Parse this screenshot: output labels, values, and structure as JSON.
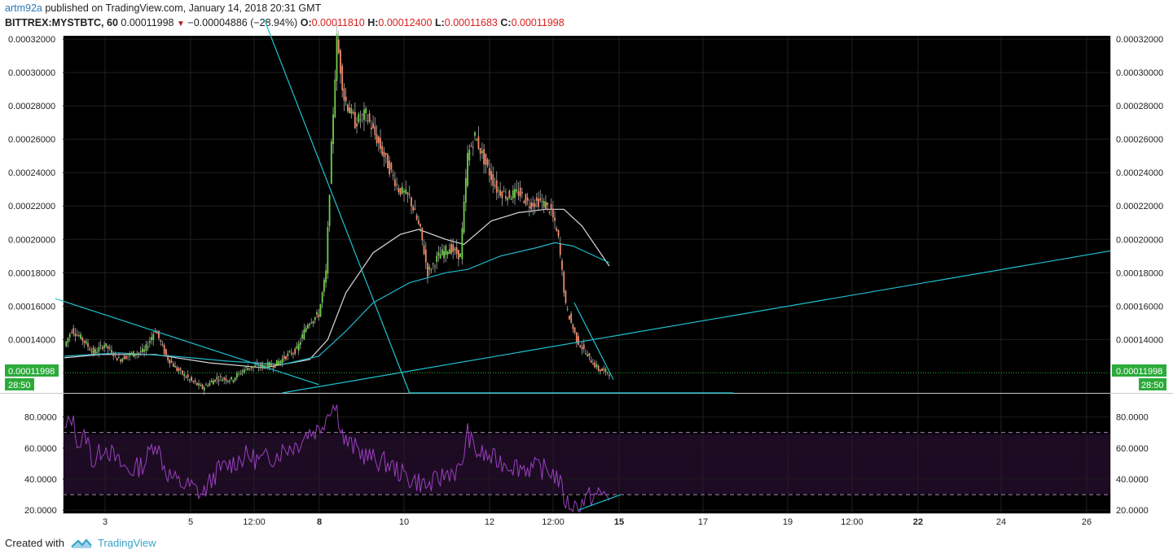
{
  "header": {
    "user": "artm92a",
    "published_text": " published on TradingView.com, January 14, 2018 20:31 GMT",
    "symbol": "BITTREX:MYSTBTC, 60",
    "last": "0.00011998",
    "change_arrow": "▼",
    "change": "−0.00004886 (−28.94%)",
    "o_label": "O:",
    "o_val": "0.00011810",
    "h_label": "H:",
    "h_val": "0.00012400",
    "l_label": "L:",
    "l_val": "0.00011683",
    "c_label": "C:",
    "c_val": "0.00011998"
  },
  "price_badge": {
    "price": "0.00011998",
    "timer": "28:50"
  },
  "footer": {
    "created_with": "Created with",
    "brand": "TradingView"
  },
  "colors": {
    "background": "#000000",
    "up": "#6fd04a",
    "down": "#f08a6a",
    "ma_fast": "#d9d9d9",
    "ma_slow": "#22b7c9",
    "trendline": "#1fc3d0",
    "rsi": "#9b3fbf",
    "rsi_band": "#1d0b24",
    "badge": "#2cab3a"
  },
  "chart_data": [
    {
      "type": "candlestick",
      "title": "BITTREX:MYSTBTC, 60",
      "y_ticks": [
        "0.00032000",
        "0.00030000",
        "0.00028000",
        "0.00026000",
        "0.00024000",
        "0.00022000",
        "0.00020000",
        "0.00018000",
        "0.00016000",
        "0.00014000"
      ],
      "ylim": [
        0.000108,
        0.000322
      ],
      "x_ticks": [
        "3",
        "5",
        "12:00",
        "8",
        "10",
        "12",
        "12:00",
        "15",
        "17",
        "19",
        "12:00",
        "22",
        "24",
        "26"
      ],
      "bold_x_ticks": [
        "8",
        "15",
        "22"
      ],
      "last_price": 0.00011998,
      "series": [
        {
          "name": "",
          "anchors": [
            [
              0,
              0.000136
            ],
            [
              4,
              0.000146
            ],
            [
              10,
              0.00014
            ],
            [
              16,
              0.000132
            ],
            [
              22,
              0.000137
            ],
            [
              30,
              0.000128
            ],
            [
              36,
              0.000131
            ],
            [
              44,
              0.000133
            ],
            [
              50,
              0.000146
            ],
            [
              56,
              0.00013
            ],
            [
              62,
              0.000122
            ],
            [
              70,
              0.000115
            ],
            [
              76,
              0.000111
            ],
            [
              84,
              0.000117
            ],
            [
              92,
              0.000116
            ],
            [
              100,
              0.000123
            ],
            [
              108,
              0.000124
            ],
            [
              116,
              0.000125
            ],
            [
              122,
              0.00013
            ],
            [
              128,
              0.000134
            ],
            [
              134,
              0.00015
            ],
            [
              140,
              0.000155
            ],
            [
              144,
              0.00018
            ],
            [
              147,
              0.000255
            ],
            [
              150,
              0.00032
            ],
            [
              154,
              0.000285
            ],
            [
              160,
              0.00027
            ],
            [
              166,
              0.000275
            ],
            [
              172,
              0.00026
            ],
            [
              178,
              0.000245
            ],
            [
              184,
              0.00023
            ],
            [
              190,
              0.000225
            ],
            [
              196,
              0.000205
            ],
            [
              200,
              0.00018
            ],
            [
              206,
              0.00019
            ],
            [
              212,
              0.000195
            ],
            [
              218,
              0.00019
            ],
            [
              222,
              0.00025
            ],
            [
              226,
              0.000262
            ],
            [
              232,
              0.000245
            ],
            [
              238,
              0.00023
            ],
            [
              244,
              0.000226
            ],
            [
              250,
              0.000228
            ],
            [
              256,
              0.000221
            ],
            [
              262,
              0.000223
            ],
            [
              268,
              0.000217
            ],
            [
              272,
              0.0002
            ],
            [
              276,
              0.00016
            ],
            [
              282,
              0.00014
            ],
            [
              288,
              0.00013
            ],
            [
              294,
              0.000122
            ],
            [
              300,
              0.00012
            ]
          ]
        }
      ],
      "moving_averages": [
        {
          "name": "",
          "color": "#d9d9d9",
          "values": [
            [
              0,
              0.000129
            ],
            [
              20,
              0.000131
            ],
            [
              50,
              0.000131
            ],
            [
              80,
              0.000126
            ],
            [
              110,
              0.000123
            ],
            [
              135,
              0.000128
            ],
            [
              145,
              0.00014
            ],
            [
              155,
              0.000168
            ],
            [
              170,
              0.000192
            ],
            [
              185,
              0.000203
            ],
            [
              195,
              0.000206
            ],
            [
              210,
              0.0002
            ],
            [
              220,
              0.000197
            ],
            [
              235,
              0.000211
            ],
            [
              250,
              0.000216
            ],
            [
              265,
              0.000218
            ],
            [
              275,
              0.000218
            ],
            [
              285,
              0.000208
            ],
            [
              300,
              0.000184
            ]
          ]
        },
        {
          "name": "",
          "color": "#22b7c9",
          "values": [
            [
              0,
              0.00013
            ],
            [
              30,
              0.000132
            ],
            [
              60,
              0.00013
            ],
            [
              90,
              0.000127
            ],
            [
              120,
              0.000125
            ],
            [
              140,
              0.00013
            ],
            [
              155,
              0.000145
            ],
            [
              170,
              0.000162
            ],
            [
              190,
              0.000174
            ],
            [
              210,
              0.00018
            ],
            [
              222,
              0.000182
            ],
            [
              240,
              0.00019
            ],
            [
              260,
              0.000195
            ],
            [
              270,
              0.000198
            ],
            [
              280,
              0.000196
            ],
            [
              300,
              0.000186
            ]
          ]
        }
      ],
      "trendlines": [
        {
          "from": [
            -5,
            0.0001645
          ],
          "to": [
            140,
            0.000113
          ]
        },
        {
          "from": [
            120,
            0.000108
          ],
          "to": [
            300,
            0.0001416
          ]
        },
        {
          "from": [
            110,
            0.000332
          ],
          "to": [
            190,
            0.000108
          ]
        }
      ]
    },
    {
      "type": "line",
      "title": "",
      "y_ticks": [
        "80.0000",
        "60.0000",
        "40.0000",
        "20.0000"
      ],
      "ylim": [
        18,
        95
      ],
      "levels": [
        70,
        30
      ],
      "series": [
        {
          "name": "",
          "anchors": [
            [
              0,
              70
            ],
            [
              4,
              80
            ],
            [
              8,
              62
            ],
            [
              12,
              68
            ],
            [
              16,
              50
            ],
            [
              22,
              62
            ],
            [
              30,
              50
            ],
            [
              36,
              45
            ],
            [
              44,
              50
            ],
            [
              50,
              65
            ],
            [
              56,
              45
            ],
            [
              62,
              38
            ],
            [
              70,
              35
            ],
            [
              76,
              30
            ],
            [
              84,
              45
            ],
            [
              92,
              50
            ],
            [
              100,
              55
            ],
            [
              108,
              52
            ],
            [
              116,
              55
            ],
            [
              122,
              60
            ],
            [
              128,
              62
            ],
            [
              134,
              70
            ],
            [
              140,
              72
            ],
            [
              144,
              80
            ],
            [
              147,
              88
            ],
            [
              150,
              85
            ],
            [
              154,
              65
            ],
            [
              160,
              60
            ],
            [
              166,
              55
            ],
            [
              172,
              52
            ],
            [
              178,
              50
            ],
            [
              184,
              45
            ],
            [
              190,
              40
            ],
            [
              196,
              38
            ],
            [
              200,
              35
            ],
            [
              206,
              40
            ],
            [
              212,
              45
            ],
            [
              218,
              45
            ],
            [
              222,
              70
            ],
            [
              226,
              58
            ],
            [
              232,
              55
            ],
            [
              238,
              52
            ],
            [
              244,
              50
            ],
            [
              250,
              48
            ],
            [
              256,
              47
            ],
            [
              262,
              47
            ],
            [
              268,
              45
            ],
            [
              272,
              40
            ],
            [
              276,
              25
            ],
            [
              282,
              22
            ],
            [
              288,
              28
            ],
            [
              294,
              30
            ],
            [
              300,
              30
            ]
          ]
        }
      ]
    }
  ]
}
